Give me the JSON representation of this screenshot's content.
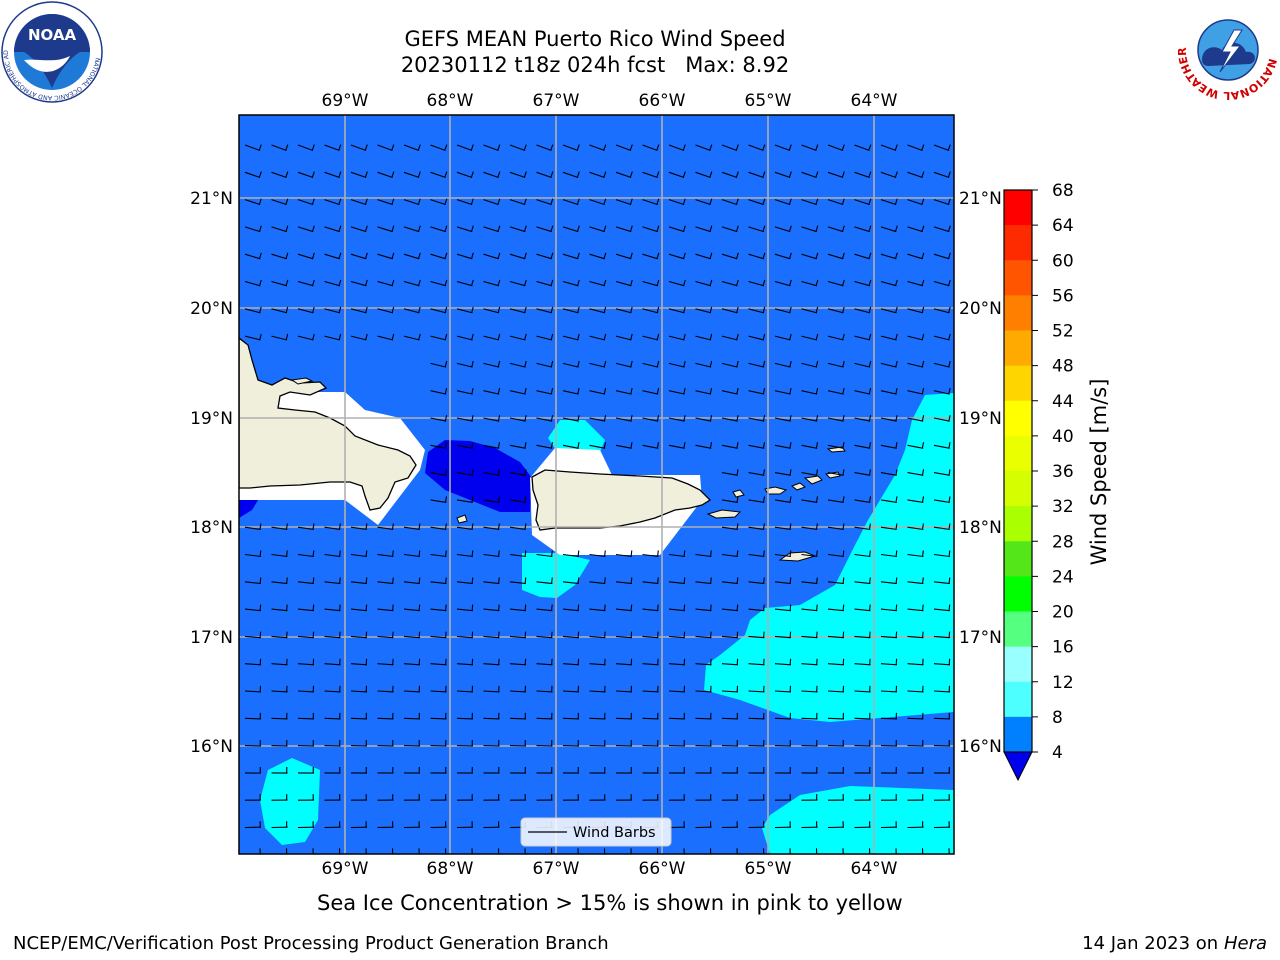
{
  "title_line1": "GEFS MEAN Puerto Rico Wind Speed",
  "title_line2_run": "20230112 t18z 024h fcst",
  "title_line2_max": "Max: 8.92",
  "lon_labels": [
    "69°W",
    "68°W",
    "67°W",
    "66°W",
    "65°W",
    "64°W"
  ],
  "lat_labels": [
    "21°N",
    "20°N",
    "19°N",
    "18°N",
    "17°N",
    "16°N"
  ],
  "legend_label": "Wind Barbs",
  "colorbar": {
    "label": "Wind Speed [m/s]",
    "ticks": [
      "68",
      "64",
      "60",
      "56",
      "52",
      "48",
      "44",
      "40",
      "36",
      "32",
      "28",
      "24",
      "20",
      "16",
      "12",
      "8",
      "4"
    ],
    "colors": [
      "#ff0000",
      "#ff2b00",
      "#ff5500",
      "#ff8000",
      "#ffaa00",
      "#ffd500",
      "#ffff00",
      "#eaff00",
      "#d5ff00",
      "#aaff00",
      "#55e61a",
      "#00ff00",
      "#55ff80",
      "#99ffff",
      "#4dffff",
      "#00ffff",
      "#0080ff"
    ],
    "under_color": "#0000ee"
  },
  "note": "Sea Ice Concentration > 15% is shown in pink to yellow",
  "footer_left": "NCEP/EMC/Verification Post Processing Product Generation Branch",
  "footer_right_date": "14 Jan 2023 on ",
  "footer_right_host": "Hera",
  "logos": {
    "left": "NOAA",
    "left_ring": "NATIONAL OCEANIC AND ATMOSPHERIC ADMINISTRATION · U.S. DEPARTMENT OF COMMERCE ·",
    "right_ring": "NATIONAL WEATHER SERVICE"
  },
  "colors": {
    "ocean": "#1a6fff",
    "land": "#efefdc",
    "band_8_12": "#00ffff",
    "band_under_4": "#0000ee",
    "grid": "#b0b0b0"
  }
}
